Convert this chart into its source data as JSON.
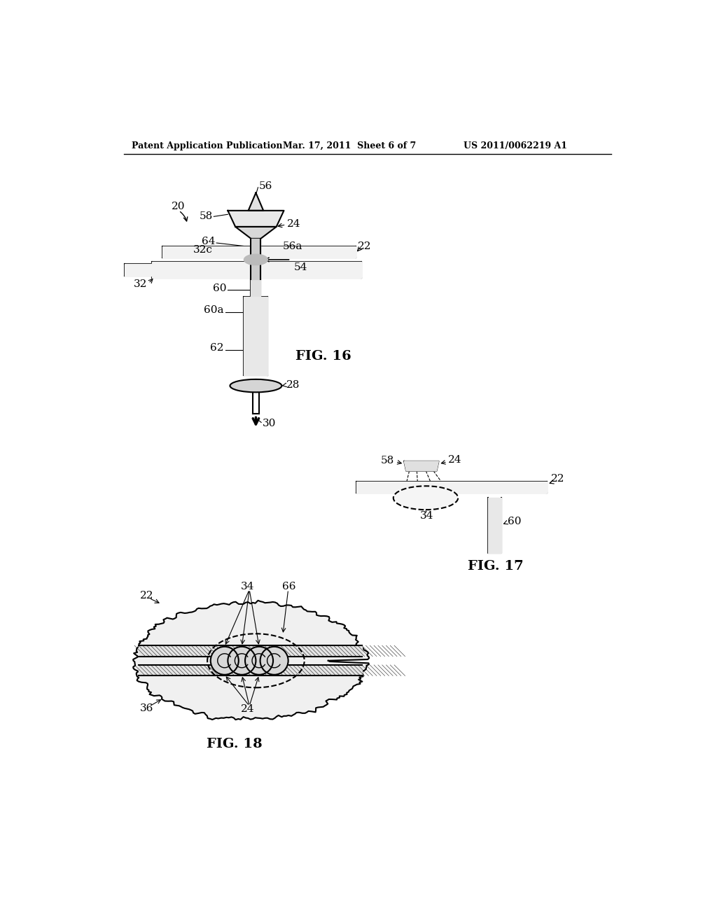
{
  "bg_color": "#ffffff",
  "line_color": "#000000",
  "header_left": "Patent Application Publication",
  "header_mid": "Mar. 17, 2011  Sheet 6 of 7",
  "header_right": "US 2011/0062219 A1",
  "fig16_label": "FIG. 16",
  "fig17_label": "FIG. 17",
  "fig18_label": "FIG. 18"
}
